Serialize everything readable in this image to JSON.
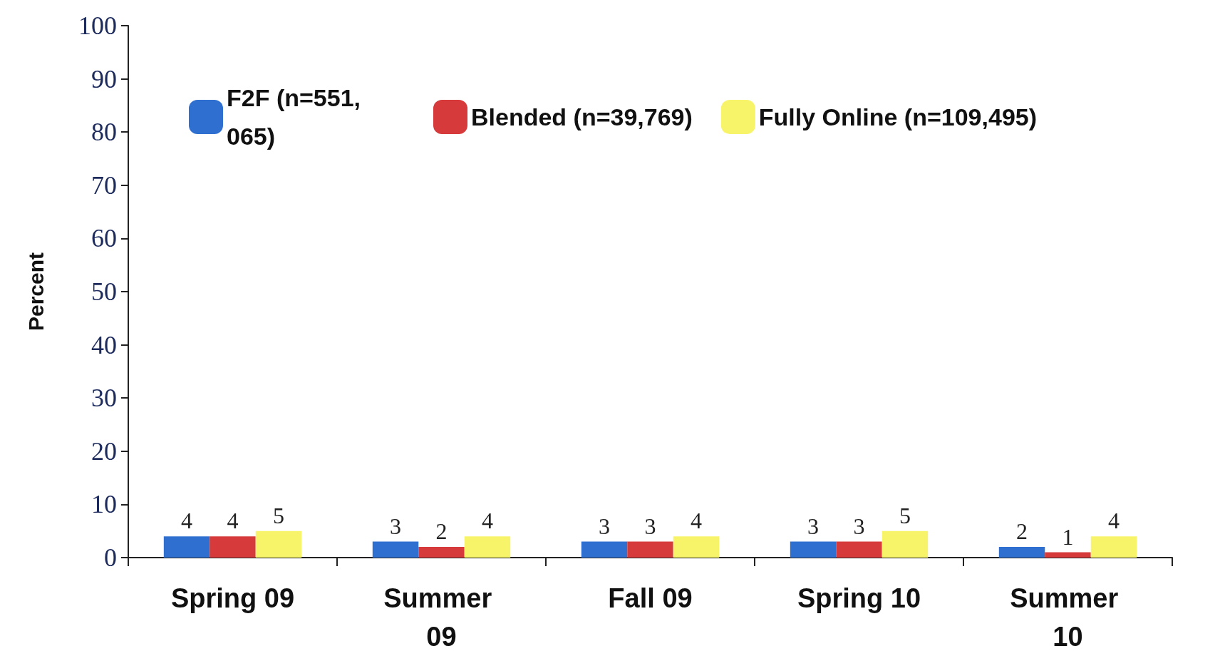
{
  "chart_data": {
    "type": "bar",
    "ylabel": "Percent",
    "categories": [
      "Spring 09",
      "Summer 09",
      "Fall 09",
      "Spring 10",
      "Summer 10"
    ],
    "series": [
      {
        "name": "F2F (n=551,065)",
        "color": "#2f6fcf",
        "values": [
          4,
          3,
          3,
          3,
          2
        ]
      },
      {
        "name": "Blended (n=39,769)",
        "color": "#d63a3a",
        "values": [
          4,
          2,
          3,
          3,
          1
        ]
      },
      {
        "name": "Fully Online (n=109,495)",
        "color": "#f8f46a",
        "values": [
          5,
          4,
          4,
          5,
          4
        ]
      }
    ],
    "ylim": [
      0,
      100
    ],
    "yticks": [
      0,
      10,
      20,
      30,
      40,
      50,
      60,
      70,
      80,
      90,
      100
    ],
    "grid": false,
    "legend": "top",
    "data_labels": true
  }
}
